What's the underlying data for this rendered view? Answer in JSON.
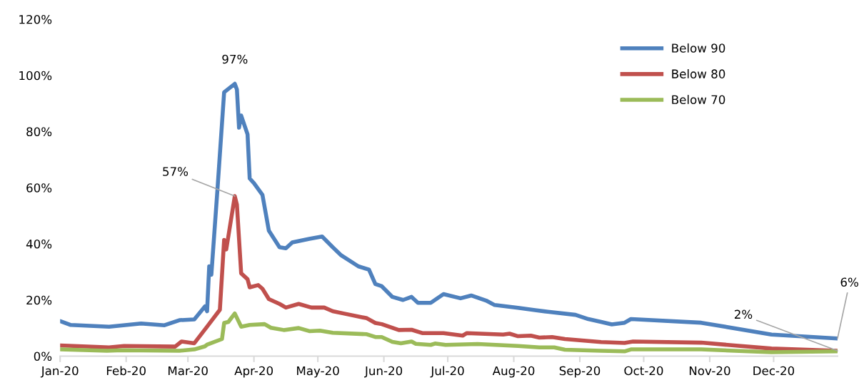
{
  "chart_data": {
    "type": "line",
    "xlim": [
      "2020-01-01",
      "2020-12-31"
    ],
    "xticks": [
      {
        "value": "2020-01-01",
        "label": "Jan-20"
      },
      {
        "value": "2020-02-01",
        "label": "Feb-20"
      },
      {
        "value": "2020-03-01",
        "label": "Mar-20"
      },
      {
        "value": "2020-04-01",
        "label": "Apr-20"
      },
      {
        "value": "2020-05-01",
        "label": "May-20"
      },
      {
        "value": "2020-06-01",
        "label": "Jun-20"
      },
      {
        "value": "2020-07-01",
        "label": "Jul-20"
      },
      {
        "value": "2020-08-01",
        "label": "Aug-20"
      },
      {
        "value": "2020-09-01",
        "label": "Sep-20"
      },
      {
        "value": "2020-10-01",
        "label": "Oct-20"
      },
      {
        "value": "2020-11-01",
        "label": "Nov-20"
      },
      {
        "value": "2020-12-01",
        "label": "Dec-20"
      }
    ],
    "ylim": [
      0,
      120
    ],
    "yticks": [
      {
        "value": 0,
        "label": "0%"
      },
      {
        "value": 20,
        "label": "20%"
      },
      {
        "value": 40,
        "label": "40%"
      },
      {
        "value": 60,
        "label": "60%"
      },
      {
        "value": 80,
        "label": "80%"
      },
      {
        "value": 100,
        "label": "100%"
      },
      {
        "value": 120,
        "label": "120%"
      }
    ],
    "grid": false,
    "legend": "top right",
    "marker": "none",
    "line_style": "solid",
    "series": [
      {
        "name": "Below 90",
        "color": "#4f81bd",
        "x": [
          "2020-01-01",
          "2020-01-06",
          "2020-01-24",
          "2020-02-08",
          "2020-02-19",
          "2020-02-26",
          "2020-03-04",
          "2020-03-09",
          "2020-03-10",
          "2020-03-11",
          "2020-03-12",
          "2020-03-15",
          "2020-03-18",
          "2020-03-23",
          "2020-03-24",
          "2020-03-25",
          "2020-03-26",
          "2020-03-29",
          "2020-03-30",
          "2020-04-01",
          "2020-04-05",
          "2020-04-08",
          "2020-04-13",
          "2020-04-16",
          "2020-04-19",
          "2020-04-27",
          "2020-05-03",
          "2020-05-08",
          "2020-05-12",
          "2020-05-20",
          "2020-05-25",
          "2020-05-28",
          "2020-05-31",
          "2020-06-05",
          "2020-06-10",
          "2020-06-14",
          "2020-06-17",
          "2020-06-23",
          "2020-06-29",
          "2020-07-07",
          "2020-07-12",
          "2020-07-19",
          "2020-07-23",
          "2020-08-03",
          "2020-08-11",
          "2020-08-17",
          "2020-08-30",
          "2020-09-05",
          "2020-09-11",
          "2020-09-16",
          "2020-09-22",
          "2020-09-25",
          "2020-10-28",
          "2020-11-30",
          "2020-12-31"
        ],
        "values": [
          12.5,
          11.1,
          10.5,
          11.6,
          11.0,
          12.8,
          13.1,
          17.7,
          16.0,
          32,
          29,
          60.8,
          94,
          97,
          95,
          81.4,
          85.7,
          79,
          63.3,
          61.6,
          57.4,
          44.7,
          38.8,
          38.4,
          40.5,
          41.8,
          42.6,
          38.8,
          35.9,
          32,
          30.8,
          25.7,
          24.9,
          21.1,
          20.0,
          21.1,
          19.0,
          19.0,
          22.1,
          20.6,
          21.6,
          19.8,
          18.2,
          17.2,
          16.4,
          15.8,
          14.7,
          13.2,
          12.2,
          11.3,
          11.9,
          13.2,
          11.9,
          7.7,
          6.3
        ]
      },
      {
        "name": "Below 80",
        "color": "#c0504d",
        "x": [
          "2020-01-01",
          "2020-01-24",
          "2020-01-31",
          "2020-02-24",
          "2020-02-27",
          "2020-03-04",
          "2020-03-10",
          "2020-03-16",
          "2020-03-18",
          "2020-03-19",
          "2020-03-23",
          "2020-03-24",
          "2020-03-26",
          "2020-03-29",
          "2020-03-30",
          "2020-04-03",
          "2020-04-05",
          "2020-04-08",
          "2020-04-13",
          "2020-04-16",
          "2020-04-22",
          "2020-04-28",
          "2020-05-04",
          "2020-05-08",
          "2020-05-13",
          "2020-05-24",
          "2020-05-28",
          "2020-05-31",
          "2020-06-08",
          "2020-06-14",
          "2020-06-19",
          "2020-06-29",
          "2020-07-08",
          "2020-07-10",
          "2020-07-27",
          "2020-07-30",
          "2020-08-03",
          "2020-08-09",
          "2020-08-13",
          "2020-08-19",
          "2020-08-25",
          "2020-09-11",
          "2020-09-22",
          "2020-09-26",
          "2020-10-28",
          "2020-11-30",
          "2020-12-31"
        ],
        "values": [
          3.8,
          3.1,
          3.6,
          3.4,
          5.2,
          4.6,
          10.5,
          16.5,
          41.4,
          38,
          57,
          54,
          29.5,
          27.4,
          24.5,
          25.3,
          24,
          20.3,
          18.6,
          17.3,
          18.6,
          17.3,
          17.3,
          16,
          15.2,
          13.5,
          11.8,
          11.4,
          9.3,
          9.4,
          8.2,
          8.2,
          7.3,
          8.2,
          7.7,
          8.0,
          7.1,
          7.3,
          6.6,
          6.8,
          6.1,
          5.0,
          4.7,
          5.2,
          4.8,
          2.7,
          1.9
        ]
      },
      {
        "name": "Below 70",
        "color": "#9bbb59",
        "x": [
          "2020-01-01",
          "2020-01-23",
          "2020-01-30",
          "2020-02-26",
          "2020-03-04",
          "2020-03-09",
          "2020-03-10",
          "2020-03-17",
          "2020-03-18",
          "2020-03-20",
          "2020-03-23",
          "2020-03-26",
          "2020-03-30",
          "2020-04-06",
          "2020-04-09",
          "2020-04-15",
          "2020-04-22",
          "2020-04-27",
          "2020-05-02",
          "2020-05-08",
          "2020-05-24",
          "2020-05-28",
          "2020-05-31",
          "2020-06-05",
          "2020-06-09",
          "2020-06-14",
          "2020-06-16",
          "2020-06-23",
          "2020-06-25",
          "2020-06-30",
          "2020-07-15",
          "2020-08-03",
          "2020-08-13",
          "2020-08-20",
          "2020-08-25",
          "2020-09-11",
          "2020-09-22",
          "2020-09-25",
          "2020-10-28",
          "2020-11-30",
          "2020-12-31"
        ],
        "values": [
          2.4,
          1.9,
          2.1,
          1.9,
          2.4,
          3.5,
          4.1,
          6.1,
          11.8,
          12.2,
          15.2,
          10.5,
          11.1,
          11.4,
          10.1,
          9.3,
          10,
          8.9,
          9.1,
          8.3,
          7.8,
          6.8,
          6.8,
          5.1,
          4.6,
          5.2,
          4.4,
          4.0,
          4.5,
          4.0,
          4.3,
          3.6,
          3.1,
          3.1,
          2.3,
          1.9,
          1.7,
          2.4,
          2.4,
          1.4,
          1.7
        ]
      }
    ],
    "annotations": [
      {
        "text": "97%",
        "x": "2020-03-23",
        "y": 97
      },
      {
        "text": "57%",
        "x": "2020-03-23",
        "y": 57
      },
      {
        "text": "2%",
        "x": "2020-12-31",
        "y": 1.9
      },
      {
        "text": "6%",
        "x": "2020-12-31",
        "y": 6.3
      }
    ]
  }
}
